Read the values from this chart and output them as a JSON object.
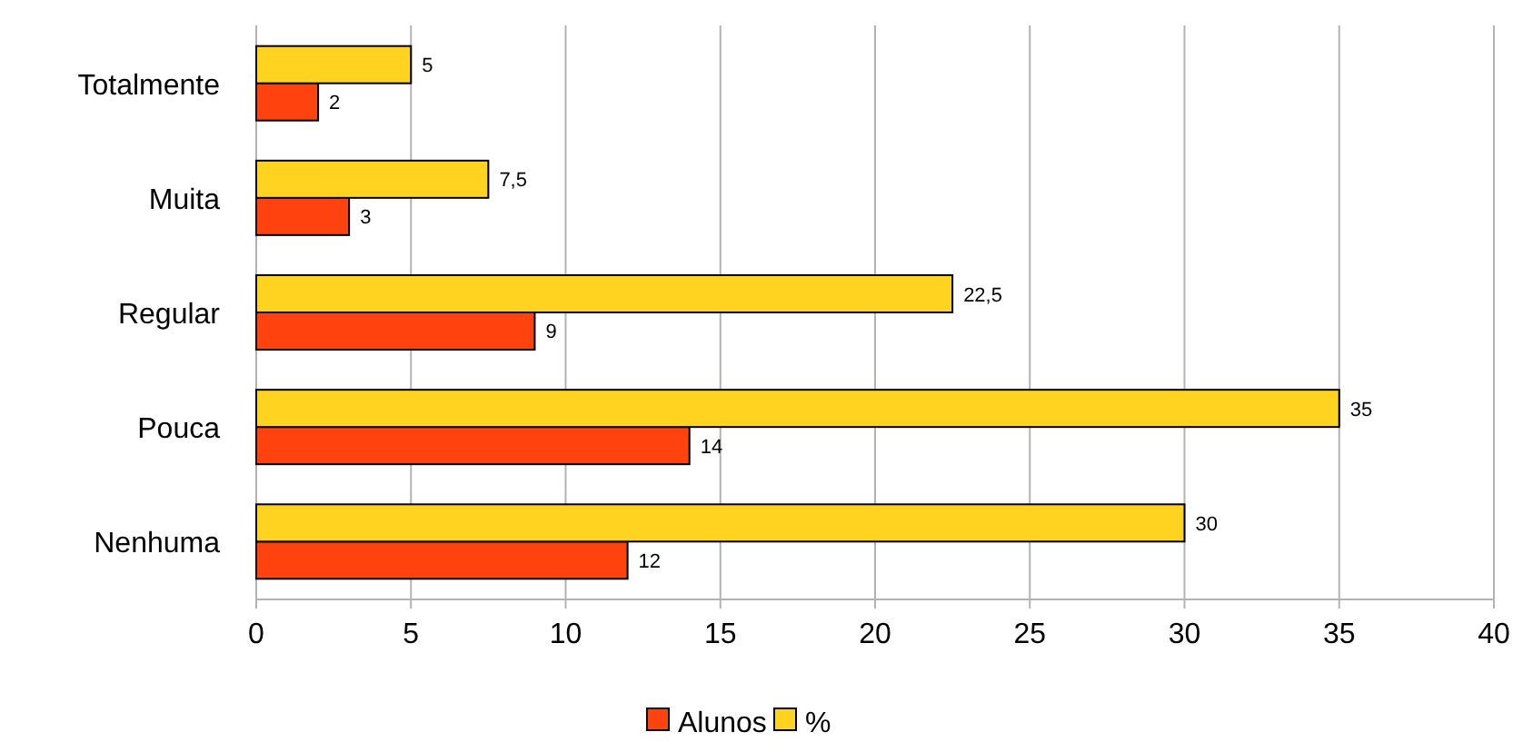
{
  "chart_data": {
    "type": "bar",
    "orientation": "horizontal",
    "categories": [
      "Totalmente",
      "Muita",
      "Regular",
      "Pouca",
      "Nenhuma"
    ],
    "series": [
      {
        "name": "Alunos",
        "color": "#ff420e",
        "values": [
          2,
          3,
          9,
          14,
          12
        ],
        "value_labels": [
          "2",
          "3",
          "9",
          "14",
          "12"
        ]
      },
      {
        "name": "%",
        "color": "#ffd320",
        "values": [
          5,
          7.5,
          22.5,
          35,
          30
        ],
        "value_labels": [
          "5",
          "7,5",
          "22,5",
          "35",
          "30"
        ]
      }
    ],
    "xlim": [
      0,
      40
    ],
    "xticks": [
      0,
      5,
      10,
      15,
      20,
      25,
      30,
      35,
      40
    ],
    "grid": "x",
    "legend": "bottom"
  }
}
